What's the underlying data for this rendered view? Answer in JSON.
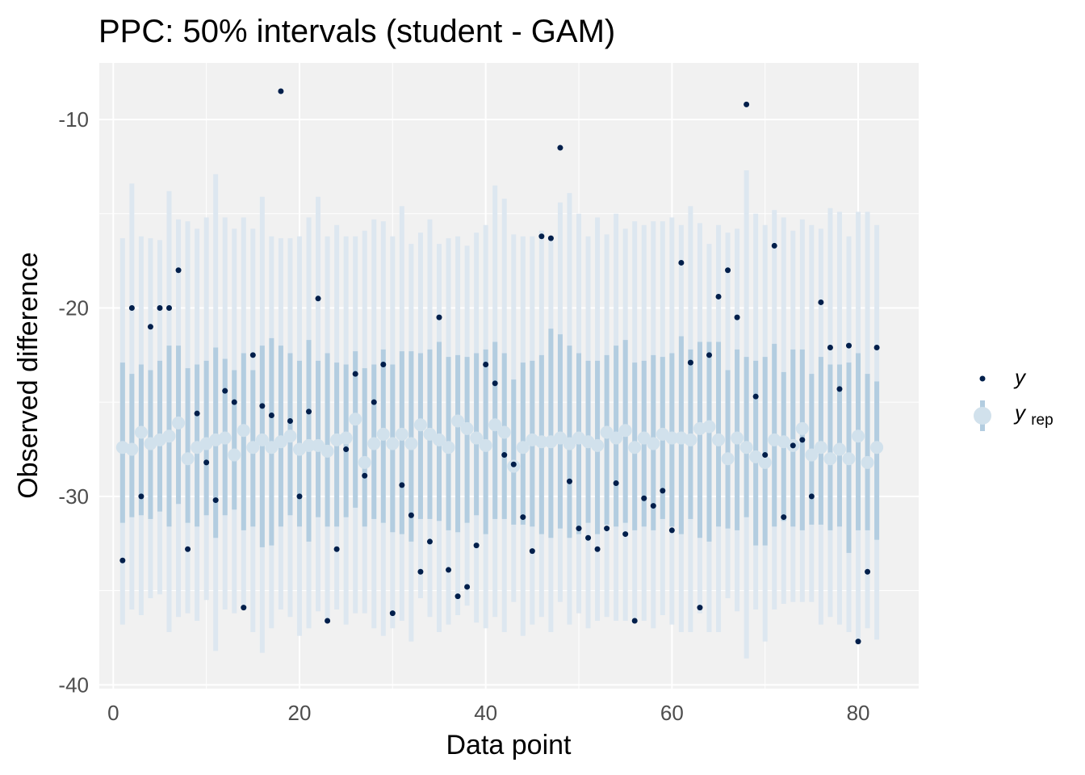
{
  "chart_data": {
    "type": "scatter",
    "title": "PPC: 50% intervals (student - GAM)",
    "xlabel": "Data point",
    "ylabel": "Observed difference",
    "xlim": [
      -1.5,
      86.5
    ],
    "ylim": [
      -40.2,
      -7.0
    ],
    "x_ticks": [
      0,
      20,
      40,
      60,
      80
    ],
    "y_ticks": [
      -10,
      -20,
      -30,
      -40
    ],
    "x_tick_labels": [
      "0",
      "20",
      "40",
      "60",
      "80"
    ],
    "y_tick_labels": [
      "-10",
      "-20",
      "-30",
      "-40"
    ],
    "grid": true,
    "legend_position": "right",
    "colors": {
      "panel_bg": "#f1f1f1",
      "grid": "#ffffff",
      "y_point": "#011f4b",
      "inner_interval": "#b3cde0",
      "outer_interval": "#dde7f0",
      "median_point": "#d1e1ec"
    },
    "legend": [
      {
        "key": "y",
        "label_main": "y",
        "label_sub": ""
      },
      {
        "key": "yrep",
        "label_main": "y",
        "label_sub": "rep"
      }
    ],
    "series": [
      {
        "name": "y",
        "x": [
          1,
          2,
          3,
          4,
          5,
          6,
          7,
          8,
          9,
          10,
          11,
          12,
          13,
          14,
          15,
          16,
          17,
          18,
          19,
          20,
          21,
          22,
          23,
          24,
          25,
          26,
          27,
          28,
          29,
          30,
          31,
          32,
          33,
          34,
          35,
          36,
          37,
          38,
          39,
          40,
          41,
          42,
          43,
          44,
          45,
          46,
          47,
          48,
          49,
          50,
          51,
          52,
          53,
          54,
          55,
          56,
          57,
          58,
          59,
          60,
          61,
          62,
          63,
          64,
          65,
          66,
          67,
          68,
          69,
          70,
          71,
          72,
          73,
          74,
          75,
          76,
          77,
          78,
          79,
          80,
          81,
          82
        ],
        "y": [
          -33.4,
          -20.0,
          -30.0,
          -21.0,
          -20.0,
          -20.0,
          -18.0,
          -32.8,
          -25.6,
          -28.2,
          -30.2,
          -24.4,
          -25.0,
          -35.9,
          -22.5,
          -25.2,
          -25.7,
          -8.5,
          -26.0,
          -30.0,
          -25.5,
          -19.5,
          -36.6,
          -32.8,
          -27.5,
          -23.5,
          -28.9,
          -25.0,
          -23.0,
          -36.2,
          -29.4,
          -31.0,
          -34.0,
          -32.4,
          -20.5,
          -33.9,
          -35.3,
          -34.8,
          -32.6,
          -23.0,
          -24.0,
          -27.8,
          -28.3,
          -31.1,
          -32.9,
          -16.2,
          -16.3,
          -11.5,
          -29.2,
          -31.7,
          -32.2,
          -32.8,
          -31.7,
          -29.3,
          -32.0,
          -36.6,
          -30.1,
          -30.5,
          -29.7,
          -31.8,
          -17.6,
          -22.9,
          -35.9,
          -22.5,
          -19.4,
          -18.0,
          -20.5,
          -9.2,
          -24.7,
          -27.8,
          -16.7,
          -31.1,
          -27.3,
          -27.0,
          -30.0,
          -19.7,
          -22.1,
          -24.3,
          -22.0,
          -37.7,
          -34.0,
          -22.1
        ]
      },
      {
        "name": "yrep",
        "x": [
          1,
          2,
          3,
          4,
          5,
          6,
          7,
          8,
          9,
          10,
          11,
          12,
          13,
          14,
          15,
          16,
          17,
          18,
          19,
          20,
          21,
          22,
          23,
          24,
          25,
          26,
          27,
          28,
          29,
          30,
          31,
          32,
          33,
          34,
          35,
          36,
          37,
          38,
          39,
          40,
          41,
          42,
          43,
          44,
          45,
          46,
          47,
          48,
          49,
          50,
          51,
          52,
          53,
          54,
          55,
          56,
          57,
          58,
          59,
          60,
          61,
          62,
          63,
          64,
          65,
          66,
          67,
          68,
          69,
          70,
          71,
          72,
          73,
          74,
          75,
          76,
          77,
          78,
          79,
          80,
          81,
          82
        ],
        "median": [
          -27.4,
          -27.5,
          -26.6,
          -27.2,
          -27.0,
          -26.8,
          -26.1,
          -28.0,
          -27.4,
          -27.2,
          -27.0,
          -26.9,
          -27.8,
          -26.5,
          -27.4,
          -27.0,
          -27.4,
          -27.1,
          -26.8,
          -27.5,
          -27.3,
          -27.3,
          -27.6,
          -27.0,
          -26.9,
          -25.9,
          -28.2,
          -27.2,
          -26.7,
          -27.2,
          -26.7,
          -27.2,
          -26.2,
          -26.7,
          -27.0,
          -27.4,
          -26.0,
          -26.4,
          -26.9,
          -27.3,
          -26.2,
          -26.6,
          -28.4,
          -27.4,
          -27.0,
          -27.1,
          -27.1,
          -26.9,
          -27.2,
          -26.9,
          -27.1,
          -27.3,
          -26.6,
          -26.9,
          -26.5,
          -27.4,
          -26.9,
          -27.2,
          -26.7,
          -26.9,
          -26.9,
          -27.0,
          -26.4,
          -26.3,
          -27.0,
          -28.0,
          -26.9,
          -27.4,
          -27.9,
          -28.2,
          -27.0,
          -27.1,
          -27.3,
          -26.4,
          -27.8,
          -27.4,
          -28.0,
          -27.5,
          -28.0,
          -26.8,
          -28.2,
          -27.4
        ],
        "inner": [
          [
            -31.4,
            -22.9
          ],
          [
            -31.1,
            -23.5
          ],
          [
            -31.0,
            -23.0
          ],
          [
            -31.2,
            -23.3
          ],
          [
            -30.8,
            -22.8
          ],
          [
            -31.6,
            -22.0
          ],
          [
            -30.4,
            -22.0
          ],
          [
            -31.4,
            -23.2
          ],
          [
            -31.6,
            -23.0
          ],
          [
            -31.0,
            -22.8
          ],
          [
            -32.2,
            -22.1
          ],
          [
            -31.0,
            -22.7
          ],
          [
            -30.7,
            -23.3
          ],
          [
            -31.8,
            -22.4
          ],
          [
            -31.6,
            -23.3
          ],
          [
            -32.7,
            -22.0
          ],
          [
            -32.6,
            -21.6
          ],
          [
            -31.6,
            -22.0
          ],
          [
            -31.0,
            -22.4
          ],
          [
            -31.6,
            -22.8
          ],
          [
            -32.4,
            -21.7
          ],
          [
            -31.1,
            -22.8
          ],
          [
            -31.6,
            -22.4
          ],
          [
            -31.6,
            -22.9
          ],
          [
            -31.1,
            -23.0
          ],
          [
            -30.6,
            -22.3
          ],
          [
            -31.6,
            -23.2
          ],
          [
            -31.2,
            -23.0
          ],
          [
            -31.4,
            -22.2
          ],
          [
            -31.9,
            -23.0
          ],
          [
            -32.0,
            -22.3
          ],
          [
            -32.4,
            -22.3
          ],
          [
            -31.2,
            -22.4
          ],
          [
            -31.2,
            -22.2
          ],
          [
            -31.3,
            -21.8
          ],
          [
            -31.8,
            -22.6
          ],
          [
            -31.9,
            -22.5
          ],
          [
            -31.4,
            -22.6
          ],
          [
            -31.0,
            -22.4
          ],
          [
            -32.0,
            -22.2
          ],
          [
            -31.2,
            -21.8
          ],
          [
            -31.2,
            -22.4
          ],
          [
            -31.5,
            -23.8
          ],
          [
            -31.5,
            -22.9
          ],
          [
            -31.6,
            -22.8
          ],
          [
            -32.0,
            -22.5
          ],
          [
            -32.2,
            -21.1
          ],
          [
            -31.7,
            -21.4
          ],
          [
            -32.2,
            -22.0
          ],
          [
            -32.0,
            -22.4
          ],
          [
            -31.4,
            -22.8
          ],
          [
            -32.0,
            -22.8
          ],
          [
            -31.5,
            -22.5
          ],
          [
            -31.6,
            -22.0
          ],
          [
            -31.4,
            -21.7
          ],
          [
            -31.8,
            -22.9
          ],
          [
            -31.6,
            -22.8
          ],
          [
            -31.8,
            -22.5
          ],
          [
            -31.2,
            -22.6
          ],
          [
            -31.6,
            -22.4
          ],
          [
            -32.0,
            -21.5
          ],
          [
            -31.2,
            -22.2
          ],
          [
            -32.2,
            -21.8
          ],
          [
            -32.4,
            -21.8
          ],
          [
            -31.6,
            -21.8
          ],
          [
            -31.7,
            -23.3
          ],
          [
            -31.8,
            -22.2
          ],
          [
            -31.1,
            -22.6
          ],
          [
            -32.6,
            -22.8
          ],
          [
            -32.6,
            -22.6
          ],
          [
            -31.6,
            -21.9
          ],
          [
            -31.3,
            -23.4
          ],
          [
            -31.6,
            -22.2
          ],
          [
            -31.8,
            -22.2
          ],
          [
            -31.5,
            -23.5
          ],
          [
            -31.5,
            -22.6
          ],
          [
            -31.8,
            -23.0
          ],
          [
            -31.6,
            -23.0
          ],
          [
            -33.0,
            -22.9
          ],
          [
            -31.8,
            -22.4
          ],
          [
            -31.8,
            -23.5
          ],
          [
            -32.3,
            -23.9
          ]
        ],
        "outer": [
          [
            -36.8,
            -16.3
          ],
          [
            -36.0,
            -13.4
          ],
          [
            -36.3,
            -16.2
          ],
          [
            -35.4,
            -16.3
          ],
          [
            -35.2,
            -16.4
          ],
          [
            -37.2,
            -13.8
          ],
          [
            -36.4,
            -15.3
          ],
          [
            -36.2,
            -15.4
          ],
          [
            -36.6,
            -15.8
          ],
          [
            -35.5,
            -15.2
          ],
          [
            -38.2,
            -12.9
          ],
          [
            -36.0,
            -15.2
          ],
          [
            -36.2,
            -15.8
          ],
          [
            -35.8,
            -15.2
          ],
          [
            -37.2,
            -15.8
          ],
          [
            -38.3,
            -14.1
          ],
          [
            -37.0,
            -16.2
          ],
          [
            -36.0,
            -16.3
          ],
          [
            -36.4,
            -16.3
          ],
          [
            -37.4,
            -16.2
          ],
          [
            -37.0,
            -15.2
          ],
          [
            -36.1,
            -14.1
          ],
          [
            -36.6,
            -16.2
          ],
          [
            -36.0,
            -15.6
          ],
          [
            -36.8,
            -16.2
          ],
          [
            -36.2,
            -16.2
          ],
          [
            -36.2,
            -15.9
          ],
          [
            -37.0,
            -15.3
          ],
          [
            -37.4,
            -15.4
          ],
          [
            -37.0,
            -16.2
          ],
          [
            -36.6,
            -14.6
          ],
          [
            -37.7,
            -16.6
          ],
          [
            -35.4,
            -16.0
          ],
          [
            -36.4,
            -15.3
          ],
          [
            -37.2,
            -16.6
          ],
          [
            -36.8,
            -16.3
          ],
          [
            -36.3,
            -16.2
          ],
          [
            -35.8,
            -16.7
          ],
          [
            -36.7,
            -16.0
          ],
          [
            -37.0,
            -15.6
          ],
          [
            -36.4,
            -13.5
          ],
          [
            -37.2,
            -14.2
          ],
          [
            -35.6,
            -16.1
          ],
          [
            -37.4,
            -16.2
          ],
          [
            -36.8,
            -16.2
          ],
          [
            -36.4,
            -15.9
          ],
          [
            -37.2,
            -16.4
          ],
          [
            -35.6,
            -14.4
          ],
          [
            -36.8,
            -13.9
          ],
          [
            -36.2,
            -15.0
          ],
          [
            -37.0,
            -16.2
          ],
          [
            -36.6,
            -15.2
          ],
          [
            -36.4,
            -16.1
          ],
          [
            -36.6,
            -15.0
          ],
          [
            -36.6,
            -15.8
          ],
          [
            -36.5,
            -15.4
          ],
          [
            -36.6,
            -15.6
          ],
          [
            -37.0,
            -15.4
          ],
          [
            -36.3,
            -15.4
          ],
          [
            -36.8,
            -15.2
          ],
          [
            -37.2,
            -15.6
          ],
          [
            -37.2,
            -14.6
          ],
          [
            -36.2,
            -15.5
          ],
          [
            -37.2,
            -16.6
          ],
          [
            -37.2,
            -15.6
          ],
          [
            -35.4,
            -16.0
          ],
          [
            -36.1,
            -15.8
          ],
          [
            -38.6,
            -12.7
          ],
          [
            -36.0,
            -15.0
          ],
          [
            -37.7,
            -15.6
          ],
          [
            -36.0,
            -14.8
          ],
          [
            -35.7,
            -15.2
          ],
          [
            -35.6,
            -15.9
          ],
          [
            -35.6,
            -15.3
          ],
          [
            -35.6,
            -15.6
          ],
          [
            -36.8,
            -15.8
          ],
          [
            -36.4,
            -14.7
          ],
          [
            -36.8,
            -14.9
          ],
          [
            -37.2,
            -16.2
          ],
          [
            -37.6,
            -14.9
          ],
          [
            -37.0,
            -14.9
          ],
          [
            -37.6,
            -15.6
          ]
        ]
      }
    ]
  }
}
